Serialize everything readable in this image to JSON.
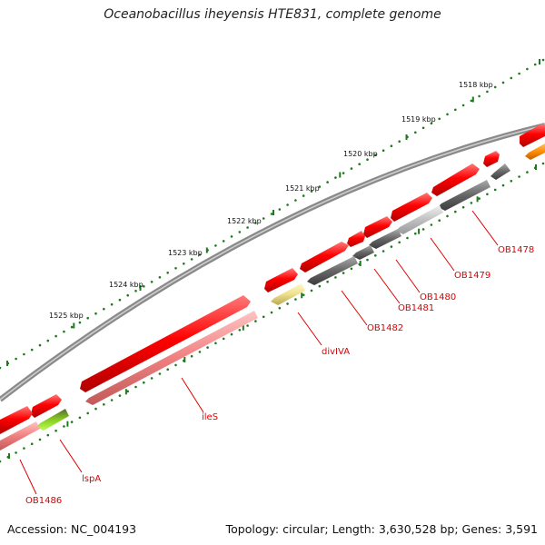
{
  "title": "Oceanobacillus iheyensis HTE831, complete genome",
  "footer": {
    "accession": "Accession: NC_004193",
    "summary": "Topology: circular; Length: 3,630,528 bp; Genes: 3,591"
  },
  "kbp_ticks": [
    "1518 kbp",
    "1519 kbp",
    "1520 kbp",
    "1521 kbp",
    "1522 kbp",
    "1523 kbp",
    "1524 kbp",
    "1525 kbp"
  ],
  "gene_labels": [
    "OB1478",
    "OB1479",
    "OB1480",
    "OB1481",
    "OB1482",
    "divIVA",
    "ileS",
    "lspA",
    "OB1486"
  ],
  "colors": {
    "backbone": "#8a8a8a",
    "forward_gene": "#ff0000",
    "reverse_gene_pink": "#f08080",
    "reverse_gene_gray": "#666666",
    "reverse_gene_lightgray": "#c0c0c0",
    "reverse_gene_yellow": "#eee08a",
    "reverse_gene_green": "#99ee33",
    "orange_gene": "#ff8c00",
    "tick_green": "#1f7a1f",
    "label_red": "#e00000"
  }
}
